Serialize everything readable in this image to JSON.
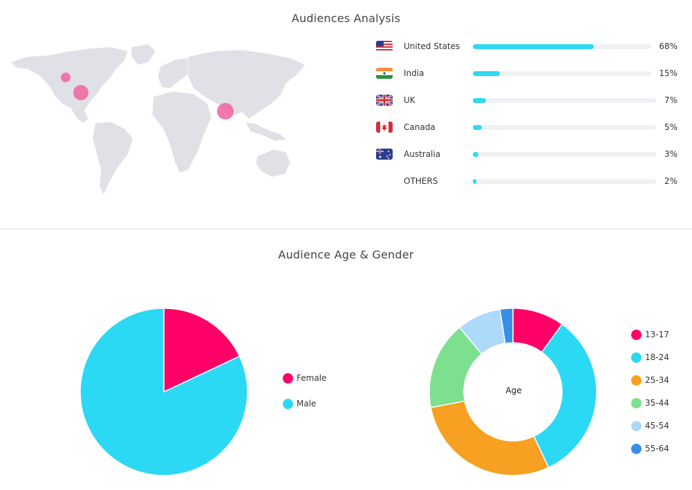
{
  "audiences": {
    "title": "Audiences Analysis",
    "countries": [
      {
        "name": "United States",
        "pct_label": "68%",
        "value": 68,
        "flag_icon": "us-flag-icon"
      },
      {
        "name": "India",
        "pct_label": "15%",
        "value": 15,
        "flag_icon": "india-flag-icon"
      },
      {
        "name": "UK",
        "pct_label": "7%",
        "value": 7,
        "flag_icon": "uk-flag-icon"
      },
      {
        "name": "Canada",
        "pct_label": "5%",
        "value": 5,
        "flag_icon": "canada-flag-icon"
      },
      {
        "name": "Australia",
        "pct_label": "3%",
        "value": 3,
        "flag_icon": "australia-flag-icon"
      },
      {
        "name": "OTHERS",
        "pct_label": "2%",
        "value": 2,
        "flag_icon": ""
      }
    ],
    "map_colors": {
      "land": "#dfe1e7",
      "bubble": "#f06aa4"
    }
  },
  "age_gender": {
    "title": "Audience Age & Gender",
    "gender_legend": [
      "Female",
      "Male"
    ],
    "age_legend": [
      "13-17",
      "18-24",
      "25-34",
      "35-44",
      "45-54",
      "55-64"
    ],
    "donut_center": "Age"
  },
  "chart_data": [
    {
      "type": "bar",
      "categories": [
        "United States",
        "India",
        "UK",
        "Canada",
        "Australia",
        "OTHERS"
      ],
      "values": [
        68,
        15,
        7,
        5,
        3,
        2
      ],
      "title": "Audiences Analysis",
      "xlabel": "",
      "ylabel": "",
      "ylim": [
        0,
        100
      ],
      "color": "#2cd9f5",
      "grid": false
    },
    {
      "type": "pie",
      "categories": [
        "Female",
        "Male"
      ],
      "values": [
        18,
        82
      ],
      "colors": [
        "#ff0066",
        "#2cd9f5"
      ],
      "legend": "right"
    },
    {
      "type": "pie",
      "categories": [
        "13-17",
        "18-24",
        "25-34",
        "35-44",
        "45-54",
        "55-64"
      ],
      "values": [
        10,
        33,
        29,
        17,
        8.5,
        2.5
      ],
      "colors": [
        "#ff0066",
        "#2cd9f5",
        "#f7a021",
        "#7ce08f",
        "#abdafb",
        "#3a8ee6"
      ],
      "legend": "right",
      "donut": true
    }
  ]
}
